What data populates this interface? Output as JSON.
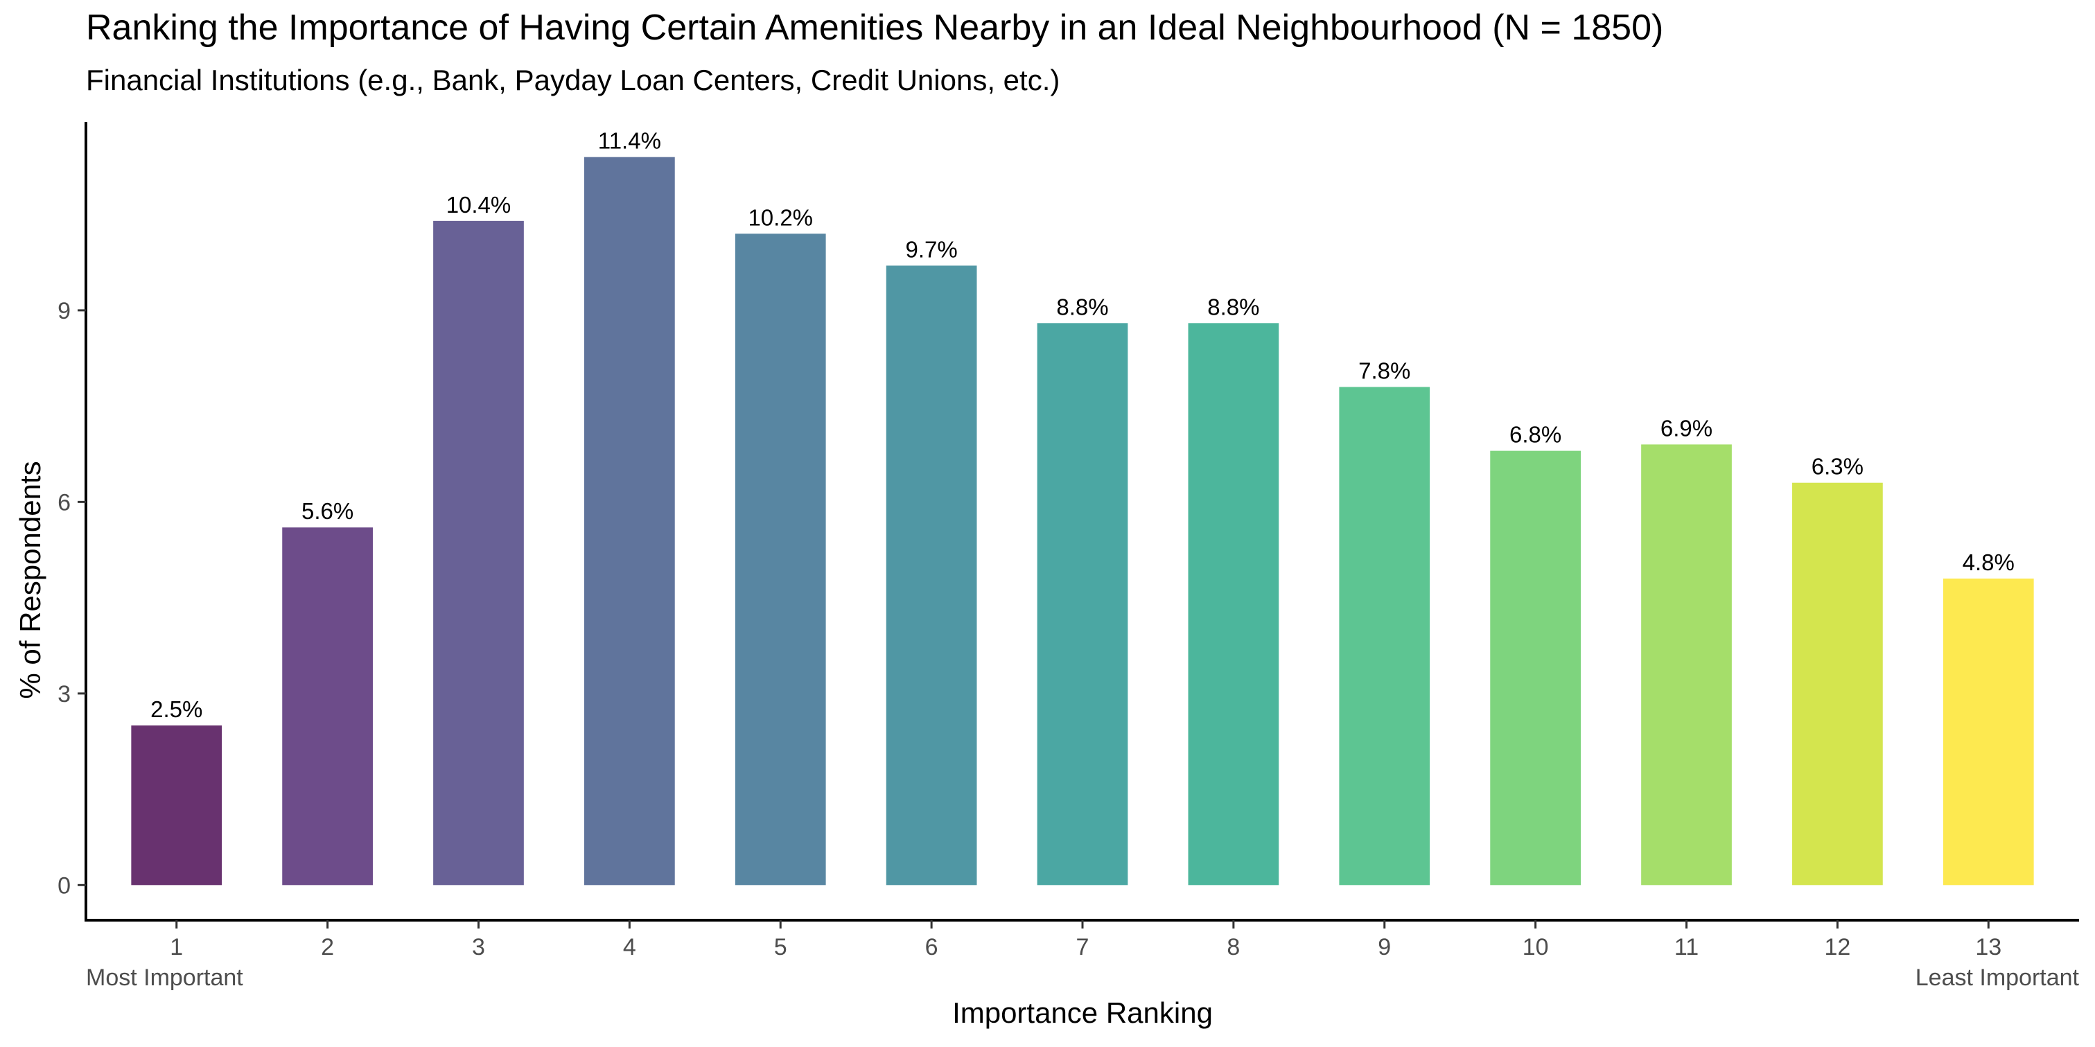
{
  "chart_data": {
    "type": "bar",
    "title": "Ranking the Importance of Having Certain Amenities Nearby in an Ideal Neighbourhood (N = 1850)",
    "subtitle": "Financial Institutions (e.g., Bank, Payday Loan Centers, Credit Unions, etc.)",
    "xlabel": "Importance Ranking",
    "ylabel": "% of Respondents",
    "x_first_note": "Most Important",
    "x_last_note": "Least Important",
    "categories": [
      "1",
      "2",
      "3",
      "4",
      "5",
      "6",
      "7",
      "8",
      "9",
      "10",
      "11",
      "12",
      "13"
    ],
    "values": [
      2.5,
      5.6,
      10.4,
      11.4,
      10.2,
      9.7,
      8.8,
      8.8,
      7.8,
      6.8,
      6.9,
      6.3,
      4.8
    ],
    "data_labels": [
      "2.5%",
      "5.6%",
      "10.4%",
      "11.4%",
      "10.2%",
      "9.7%",
      "8.8%",
      "8.8%",
      "7.8%",
      "6.8%",
      "6.9%",
      "6.3%",
      "4.8%"
    ],
    "colors": [
      "#68326f",
      "#6d4c8a",
      "#686196",
      "#60749c",
      "#5886a2",
      "#5097a4",
      "#4ba7a3",
      "#4cb69c",
      "#5dc592",
      "#7ed47e",
      "#a5de6a",
      "#d4e54e",
      "#fde950"
    ],
    "yticks": [
      0,
      3,
      6,
      9
    ],
    "ylim": [
      -0.55,
      11.95
    ],
    "grid": false,
    "legend": "none"
  }
}
